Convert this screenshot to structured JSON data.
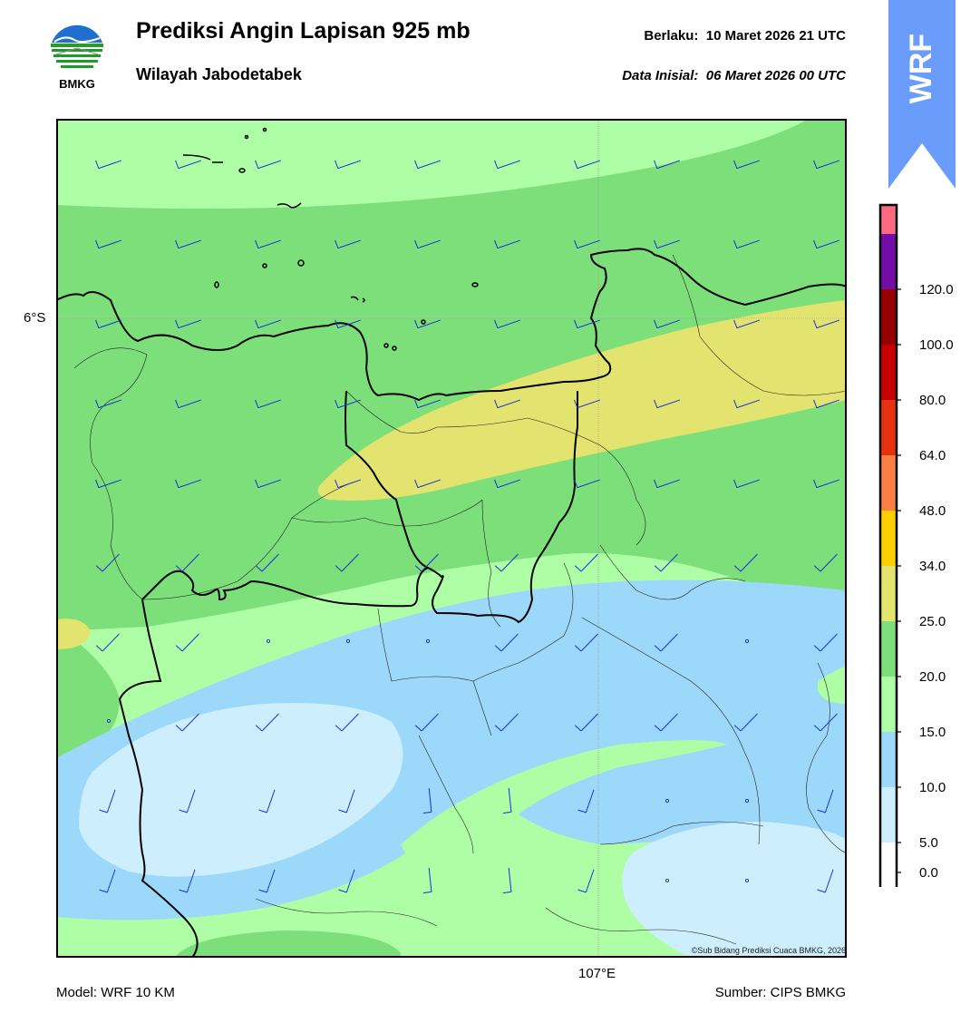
{
  "header": {
    "title": "Prediksi Angin Lapisan 925 mb",
    "subtitle": "Wilayah Jabodetabek",
    "valid_label": "Berlaku:",
    "valid_time": "10 Maret 2026 21 UTC",
    "init_label": "Data Inisial:",
    "init_time": "06 Maret 2026 00 UTC"
  },
  "logo": {
    "text": "BMKG",
    "icon": "bmkg-logo"
  },
  "model_tag": {
    "text": "WRF",
    "color": "#6a9cfc"
  },
  "map": {
    "lat_label": "6°S",
    "lon_label": "107°E",
    "copyright": "©Sub Bidang Prediksi Cuaca BMKG, 2026",
    "barb_color": "#1a2fe0",
    "boundary_color": "#000000"
  },
  "colorbar": {
    "levels": [
      {
        "label": "0.0",
        "color": "#ffffff"
      },
      {
        "label": "5.0",
        "color": "#cdeffd"
      },
      {
        "label": "10.0",
        "color": "#9bd8fa"
      },
      {
        "label": "15.0",
        "color": "#adfea4"
      },
      {
        "label": "20.0",
        "color": "#7ddf79"
      },
      {
        "label": "25.0",
        "color": "#e3e370"
      },
      {
        "label": "34.0",
        "color": "#fbcf01"
      },
      {
        "label": "48.0",
        "color": "#fa7f45"
      },
      {
        "label": "64.0",
        "color": "#e83110"
      },
      {
        "label": "80.0",
        "color": "#c80000"
      },
      {
        "label": "100.0",
        "color": "#970000"
      },
      {
        "label": "120.0",
        "color": "#720da7"
      }
    ],
    "top_color": "#fb6a80"
  },
  "footer": {
    "model": "Model: WRF 10 KM",
    "source": "Sumber: CIPS BMKG"
  }
}
